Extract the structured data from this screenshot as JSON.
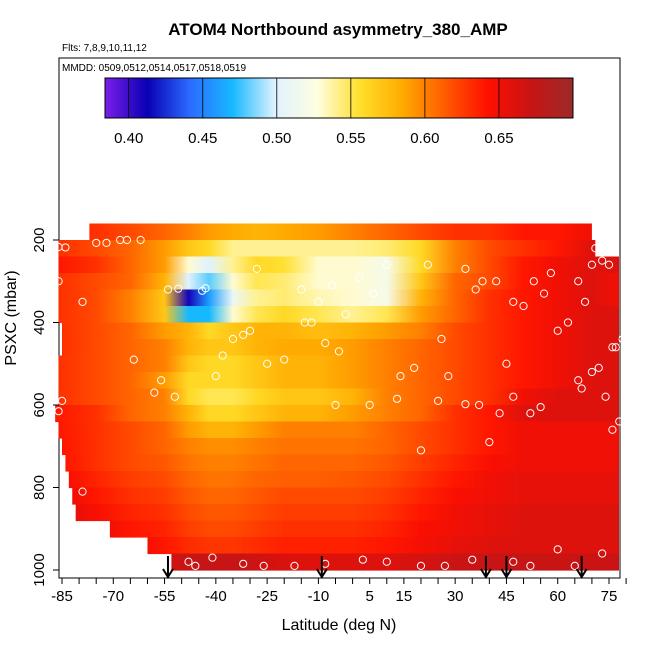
{
  "chart_data": {
    "type": "heatmap",
    "title": "ATOM4 Northbound asymmetry_380_AMP",
    "subtitle_flights": "Flts: 7,8,9,10,11,12",
    "subtitle_dates": "MMDD: 0509,0512,0514,0517,0518,0519",
    "xlabel": "Latitude (deg N)",
    "ylabel": "PSXC (mbar)",
    "xlim": [
      -87,
      83
    ],
    "ylim": [
      1020,
      130
    ],
    "x_ticks": [
      -85,
      -70,
      -55,
      -40,
      -25,
      -10,
      5,
      15,
      30,
      45,
      60,
      75
    ],
    "y_ticks": [
      200,
      400,
      600,
      800,
      1000
    ],
    "colorbar": {
      "range": [
        0.384,
        0.7
      ],
      "ticks": [
        0.4,
        0.45,
        0.5,
        0.55,
        0.6,
        0.65
      ],
      "tick_labels": [
        "0.40",
        "0.45",
        "0.50",
        "0.55",
        "0.60",
        "0.65"
      ],
      "colors": [
        "#7a1fe8",
        "#0a00b4",
        "#2a6cff",
        "#18b8ff",
        "#dff2ff",
        "#fffee0",
        "#ffdf2a",
        "#ffaa00",
        "#ff5a00",
        "#ff0f00",
        "#c81414",
        "#9c2a2a"
      ]
    },
    "pressure_levels": [
      180,
      220,
      260,
      300,
      340,
      380,
      420,
      460,
      500,
      540,
      580,
      620,
      660,
      700,
      740,
      780,
      820,
      860,
      900,
      940,
      980
    ],
    "level_lat_extent": [
      [
        -77,
        70
      ],
      [
        -86,
        71
      ],
      [
        -86,
        79
      ],
      [
        -86,
        79
      ],
      [
        -86,
        80
      ],
      [
        -86,
        80
      ],
      [
        -85,
        80
      ],
      [
        -85,
        80
      ],
      [
        -86,
        80
      ],
      [
        -86,
        80
      ],
      [
        -86,
        80
      ],
      [
        -87,
        80
      ],
      [
        -86,
        80
      ],
      [
        -85,
        80
      ],
      [
        -84,
        80
      ],
      [
        -83,
        80
      ],
      [
        -82,
        80
      ],
      [
        -81,
        80
      ],
      [
        -71,
        80
      ],
      [
        -60,
        80
      ],
      [
        -53,
        80
      ]
    ],
    "lat_grid": [
      -87,
      -75,
      -65,
      -55,
      -48,
      -42,
      -35,
      -28,
      -20,
      -10,
      0,
      10,
      20,
      30,
      40,
      50,
      60,
      70,
      80
    ],
    "values": [
      [
        0.63,
        0.63,
        0.62,
        0.61,
        0.6,
        0.59,
        0.585,
        0.58,
        0.585,
        0.59,
        0.6,
        0.61,
        0.62,
        0.63,
        0.63,
        0.64,
        0.64,
        0.65,
        0.65
      ],
      [
        0.63,
        0.62,
        0.61,
        0.59,
        0.57,
        0.56,
        0.54,
        0.54,
        0.54,
        0.54,
        0.54,
        0.545,
        0.56,
        0.6,
        0.62,
        0.63,
        0.64,
        0.66,
        0.66
      ],
      [
        0.64,
        0.63,
        0.61,
        0.59,
        0.53,
        0.5,
        0.54,
        0.56,
        0.555,
        0.53,
        0.53,
        0.52,
        0.56,
        0.6,
        0.62,
        0.64,
        0.65,
        0.66,
        0.66
      ],
      [
        0.63,
        0.62,
        0.61,
        0.58,
        0.5,
        0.48,
        0.53,
        0.55,
        0.545,
        0.53,
        0.53,
        0.52,
        0.57,
        0.61,
        0.62,
        0.64,
        0.65,
        0.66,
        0.65
      ],
      [
        0.63,
        0.62,
        0.6,
        0.57,
        0.41,
        0.46,
        0.51,
        0.54,
        0.545,
        0.535,
        0.53,
        0.52,
        0.58,
        0.61,
        0.63,
        0.64,
        0.65,
        0.66,
        0.65
      ],
      [
        0.63,
        0.62,
        0.6,
        0.57,
        0.47,
        0.47,
        0.53,
        0.55,
        0.56,
        0.55,
        0.54,
        0.55,
        0.59,
        0.61,
        0.63,
        0.64,
        0.65,
        0.66,
        0.66
      ],
      [
        0.63,
        0.62,
        0.61,
        0.59,
        0.58,
        0.56,
        0.57,
        0.58,
        0.58,
        0.575,
        0.58,
        0.59,
        0.6,
        0.62,
        0.63,
        0.64,
        0.65,
        0.66,
        0.66
      ],
      [
        0.63,
        0.62,
        0.61,
        0.6,
        0.58,
        0.57,
        0.57,
        0.58,
        0.585,
        0.585,
        0.59,
        0.6,
        0.61,
        0.62,
        0.63,
        0.64,
        0.65,
        0.66,
        0.66
      ],
      [
        0.63,
        0.62,
        0.61,
        0.6,
        0.57,
        0.56,
        0.56,
        0.57,
        0.58,
        0.58,
        0.59,
        0.6,
        0.61,
        0.62,
        0.63,
        0.64,
        0.65,
        0.66,
        0.66
      ],
      [
        0.63,
        0.62,
        0.61,
        0.59,
        0.56,
        0.56,
        0.56,
        0.57,
        0.58,
        0.58,
        0.59,
        0.6,
        0.61,
        0.62,
        0.63,
        0.64,
        0.65,
        0.66,
        0.66
      ],
      [
        0.63,
        0.62,
        0.61,
        0.6,
        0.56,
        0.55,
        0.55,
        0.56,
        0.57,
        0.57,
        0.58,
        0.6,
        0.61,
        0.62,
        0.63,
        0.65,
        0.66,
        0.66,
        0.66
      ],
      [
        0.64,
        0.63,
        0.61,
        0.6,
        0.58,
        0.56,
        0.56,
        0.57,
        0.58,
        0.58,
        0.59,
        0.6,
        0.61,
        0.63,
        0.64,
        0.66,
        0.66,
        0.66,
        0.66
      ],
      [
        0.64,
        0.63,
        0.62,
        0.61,
        0.59,
        0.58,
        0.58,
        0.59,
        0.6,
        0.6,
        0.6,
        0.61,
        0.62,
        0.63,
        0.64,
        0.65,
        0.65,
        0.65,
        0.65
      ],
      [
        0.64,
        0.63,
        0.62,
        0.61,
        0.6,
        0.595,
        0.595,
        0.6,
        0.605,
        0.605,
        0.605,
        0.61,
        0.62,
        0.63,
        0.64,
        0.65,
        0.65,
        0.65,
        0.65
      ],
      [
        0.64,
        0.63,
        0.62,
        0.615,
        0.605,
        0.6,
        0.6,
        0.605,
        0.61,
        0.61,
        0.61,
        0.615,
        0.625,
        0.635,
        0.645,
        0.65,
        0.65,
        0.65,
        0.65
      ],
      [
        0.645,
        0.635,
        0.625,
        0.62,
        0.61,
        0.605,
        0.605,
        0.61,
        0.612,
        0.612,
        0.615,
        0.62,
        0.63,
        0.64,
        0.65,
        0.655,
        0.655,
        0.655,
        0.655
      ],
      [
        0.65,
        0.64,
        0.63,
        0.625,
        0.615,
        0.61,
        0.61,
        0.615,
        0.62,
        0.62,
        0.62,
        0.625,
        0.635,
        0.645,
        0.65,
        0.655,
        0.655,
        0.655,
        0.655
      ],
      [
        0.655,
        0.645,
        0.635,
        0.63,
        0.62,
        0.615,
        0.615,
        0.62,
        0.625,
        0.625,
        0.625,
        0.63,
        0.64,
        0.65,
        0.655,
        0.66,
        0.66,
        0.66,
        0.66
      ],
      [
        0.66,
        0.65,
        0.64,
        0.635,
        0.625,
        0.62,
        0.62,
        0.625,
        0.63,
        0.63,
        0.63,
        0.635,
        0.645,
        0.65,
        0.655,
        0.66,
        0.66,
        0.66,
        0.66
      ],
      [
        0.66,
        0.655,
        0.648,
        0.64,
        0.632,
        0.628,
        0.628,
        0.632,
        0.636,
        0.636,
        0.636,
        0.64,
        0.648,
        0.655,
        0.66,
        0.66,
        0.66,
        0.66,
        0.66
      ],
      [
        0.67,
        0.67,
        0.665,
        0.668,
        0.672,
        0.672,
        0.672,
        0.668,
        0.662,
        0.66,
        0.66,
        0.66,
        0.665,
        0.67,
        0.672,
        0.672,
        0.67,
        0.67,
        0.67
      ]
    ],
    "markers_down_arrows_lat": [
      -54,
      -9,
      39,
      45,
      67
    ],
    "observations": [
      [
        -86,
        217
      ],
      [
        -84,
        218
      ],
      [
        -75,
        207
      ],
      [
        -72,
        207
      ],
      [
        -68,
        200
      ],
      [
        -66,
        200
      ],
      [
        -62,
        200
      ],
      [
        -86,
        300
      ],
      [
        -79,
        350
      ],
      [
        -64,
        490
      ],
      [
        -54,
        320
      ],
      [
        -51,
        318
      ],
      [
        -44,
        323
      ],
      [
        -43,
        317
      ],
      [
        -40,
        530
      ],
      [
        -38,
        480
      ],
      [
        -35,
        440
      ],
      [
        -32,
        430
      ],
      [
        -30,
        420
      ],
      [
        -28,
        270
      ],
      [
        -25,
        500
      ],
      [
        -20,
        490
      ],
      [
        -15,
        320
      ],
      [
        -14,
        400
      ],
      [
        -12,
        400
      ],
      [
        -10,
        350
      ],
      [
        -8,
        450
      ],
      [
        -6,
        310
      ],
      [
        -4,
        470
      ],
      [
        -2,
        380
      ],
      [
        2,
        290
      ],
      [
        6,
        330
      ],
      [
        10,
        260
      ],
      [
        14,
        530
      ],
      [
        18,
        510
      ],
      [
        22,
        260
      ],
      [
        26,
        440
      ],
      [
        28,
        530
      ],
      [
        33,
        270
      ],
      [
        36,
        320
      ],
      [
        38,
        300
      ],
      [
        42,
        300
      ],
      [
        45,
        500
      ],
      [
        47,
        350
      ],
      [
        50,
        360
      ],
      [
        53,
        300
      ],
      [
        56,
        330
      ],
      [
        58,
        280
      ],
      [
        60,
        420
      ],
      [
        63,
        400
      ],
      [
        66,
        300
      ],
      [
        68,
        350
      ],
      [
        70,
        260
      ],
      [
        71,
        220
      ],
      [
        73,
        250
      ],
      [
        75,
        260
      ],
      [
        76,
        230
      ],
      [
        77,
        460
      ],
      [
        79,
        440
      ],
      [
        80,
        500
      ],
      [
        81,
        580
      ],
      [
        80,
        620
      ],
      [
        78,
        640
      ],
      [
        76,
        660
      ],
      [
        67,
        560
      ],
      [
        66,
        540
      ],
      [
        70,
        520
      ],
      [
        72,
        510
      ],
      [
        74,
        580
      ],
      [
        76,
        460
      ],
      [
        -86,
        615
      ],
      [
        -85,
        590
      ],
      [
        -79,
        810
      ],
      [
        -58,
        570
      ],
      [
        -56,
        540
      ],
      [
        -52,
        580
      ],
      [
        -48,
        980
      ],
      [
        -46,
        990
      ],
      [
        -41,
        970
      ],
      [
        -32,
        985
      ],
      [
        -26,
        990
      ],
      [
        -17,
        990
      ],
      [
        -8,
        985
      ],
      [
        3,
        975
      ],
      [
        10,
        980
      ],
      [
        20,
        990
      ],
      [
        27,
        990
      ],
      [
        35,
        975
      ],
      [
        47,
        980
      ],
      [
        52,
        990
      ],
      [
        60,
        950
      ],
      [
        65,
        990
      ],
      [
        73,
        960
      ],
      [
        80,
        985
      ],
      [
        25,
        590
      ],
      [
        33,
        598
      ],
      [
        37,
        600
      ],
      [
        40,
        690
      ],
      [
        43,
        620
      ],
      [
        52,
        620
      ],
      [
        55,
        605
      ],
      [
        47,
        580
      ],
      [
        20,
        710
      ],
      [
        13,
        585
      ],
      [
        5,
        600
      ],
      [
        -5,
        600
      ]
    ]
  }
}
